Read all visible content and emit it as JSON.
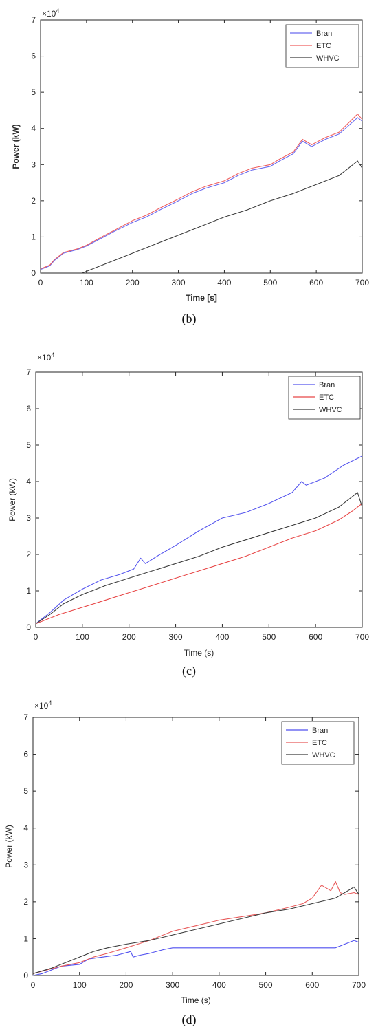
{
  "chart_data": [
    {
      "type": "line",
      "caption": "(b)",
      "xlabel": "Time [s]",
      "ylabel": "Power (kW)",
      "exponent_base": "×10",
      "exponent_power": "4",
      "xlim": [
        0,
        700
      ],
      "ylim": [
        0,
        70000
      ],
      "xticks": [
        "0",
        "100",
        "200",
        "300",
        "400",
        "500",
        "600",
        "700"
      ],
      "yticks": [
        "0",
        "1",
        "2",
        "3",
        "4",
        "5",
        "6",
        "7"
      ],
      "legend_position": "top-right",
      "series": [
        {
          "name": "Bran",
          "color": "#6b6bef",
          "x": [
            0,
            20,
            30,
            50,
            80,
            100,
            130,
            160,
            200,
            230,
            260,
            300,
            330,
            360,
            400,
            430,
            460,
            500,
            520,
            550,
            570,
            590,
            620,
            650,
            690,
            700
          ],
          "y": [
            1000,
            2000,
            3500,
            5500,
            6500,
            7500,
            9500,
            11500,
            14000,
            15500,
            17500,
            20000,
            22000,
            23500,
            25000,
            27000,
            28500,
            29500,
            31000,
            33000,
            36500,
            35000,
            37000,
            38500,
            43000,
            42000
          ]
        },
        {
          "name": "ETC",
          "color": "#ef5f5f",
          "x": [
            0,
            20,
            30,
            50,
            80,
            100,
            130,
            160,
            200,
            230,
            260,
            300,
            330,
            360,
            400,
            430,
            460,
            500,
            520,
            550,
            570,
            590,
            620,
            650,
            690,
            700
          ],
          "y": [
            1200,
            2200,
            3700,
            5700,
            6700,
            7700,
            9800,
            11800,
            14500,
            16000,
            18000,
            20500,
            22500,
            24000,
            25500,
            27500,
            29000,
            30000,
            31500,
            33500,
            37000,
            35500,
            37500,
            39000,
            44000,
            42500
          ]
        },
        {
          "name": "WHVC",
          "color": "#3c3c3c",
          "x": [
            90,
            150,
            200,
            250,
            300,
            350,
            400,
            450,
            500,
            550,
            600,
            650,
            690,
            700
          ],
          "y": [
            0,
            3000,
            5500,
            8000,
            10500,
            13000,
            15500,
            17500,
            20000,
            22000,
            24500,
            27000,
            31000,
            29000
          ]
        }
      ]
    },
    {
      "type": "line",
      "caption": "(c)",
      "xlabel": "Time (s)",
      "ylabel": "Power (kW)",
      "exponent_base": "×10",
      "exponent_power": "4",
      "xlim": [
        0,
        700
      ],
      "ylim": [
        0,
        70000
      ],
      "xticks": [
        "0",
        "100",
        "200",
        "300",
        "400",
        "500",
        "600",
        "700"
      ],
      "yticks": [
        "0",
        "1",
        "2",
        "3",
        "4",
        "5",
        "6",
        "7"
      ],
      "legend_position": "top-right",
      "series": [
        {
          "name": "Bran",
          "color": "#5656ee",
          "x": [
            0,
            30,
            60,
            100,
            140,
            180,
            210,
            225,
            235,
            260,
            300,
            350,
            400,
            450,
            500,
            550,
            570,
            580,
            620,
            660,
            700
          ],
          "y": [
            1000,
            4000,
            7500,
            10500,
            13000,
            14500,
            16000,
            19000,
            17500,
            19500,
            22500,
            26500,
            30000,
            31500,
            34000,
            37000,
            40000,
            39000,
            41000,
            44500,
            47000
          ]
        },
        {
          "name": "ETC",
          "color": "#e84848",
          "x": [
            0,
            50,
            100,
            150,
            200,
            250,
            300,
            350,
            400,
            450,
            500,
            550,
            600,
            650,
            680,
            690,
            700
          ],
          "y": [
            1000,
            3500,
            5500,
            7500,
            9500,
            11500,
            13500,
            15500,
            17500,
            19500,
            22000,
            24500,
            26500,
            29500,
            32000,
            33000,
            34000
          ]
        },
        {
          "name": "WHVC",
          "color": "#3a3a3a",
          "x": [
            0,
            30,
            60,
            100,
            150,
            200,
            250,
            300,
            350,
            400,
            450,
            500,
            550,
            600,
            650,
            690,
            700
          ],
          "y": [
            1000,
            3500,
            6500,
            9000,
            11500,
            13500,
            15500,
            17500,
            19500,
            22000,
            24000,
            26000,
            28000,
            30000,
            33000,
            37000,
            33000
          ]
        }
      ]
    },
    {
      "type": "line",
      "caption": "(d)",
      "xlabel": "Time (s)",
      "ylabel": "Power (kW)",
      "exponent_base": "×10",
      "exponent_power": "4",
      "xlim": [
        0,
        700
      ],
      "ylim": [
        0,
        70000
      ],
      "xticks": [
        "0",
        "100",
        "200",
        "300",
        "400",
        "500",
        "600",
        "700"
      ],
      "yticks": [
        "0",
        "1",
        "2",
        "3",
        "4",
        "5",
        "6",
        "7"
      ],
      "legend_position": "top-right",
      "series": [
        {
          "name": "Bran",
          "color": "#4f4fef",
          "x": [
            0,
            20,
            40,
            60,
            100,
            120,
            150,
            180,
            210,
            215,
            230,
            250,
            280,
            300,
            330,
            350,
            400,
            450,
            500,
            550,
            600,
            650,
            680,
            690,
            700
          ],
          "y": [
            0,
            500,
            1500,
            2500,
            3000,
            4500,
            5000,
            5500,
            6500,
            5000,
            5500,
            6000,
            7000,
            7500,
            7500,
            7500,
            7500,
            7500,
            7500,
            7500,
            7500,
            7500,
            9000,
            9500,
            9000
          ]
        },
        {
          "name": "ETC",
          "color": "#e85a5a",
          "x": [
            0,
            30,
            60,
            100,
            130,
            160,
            200,
            250,
            300,
            350,
            400,
            450,
            500,
            550,
            580,
            600,
            620,
            640,
            650,
            660,
            670,
            690,
            700
          ],
          "y": [
            500,
            1500,
            2500,
            3500,
            5000,
            6000,
            7500,
            9500,
            12000,
            13500,
            15000,
            16000,
            17000,
            18500,
            19500,
            21000,
            24500,
            23000,
            25500,
            22500,
            22000,
            22500,
            22000
          ]
        },
        {
          "name": "WHVC",
          "color": "#3c3c3c",
          "x": [
            0,
            40,
            70,
            100,
            130,
            160,
            200,
            250,
            300,
            350,
            400,
            450,
            500,
            550,
            600,
            650,
            690,
            700
          ],
          "y": [
            500,
            2000,
            3500,
            5000,
            6500,
            7500,
            8500,
            9500,
            11000,
            12500,
            14000,
            15500,
            17000,
            18000,
            19500,
            21000,
            24000,
            22000
          ]
        }
      ]
    }
  ]
}
